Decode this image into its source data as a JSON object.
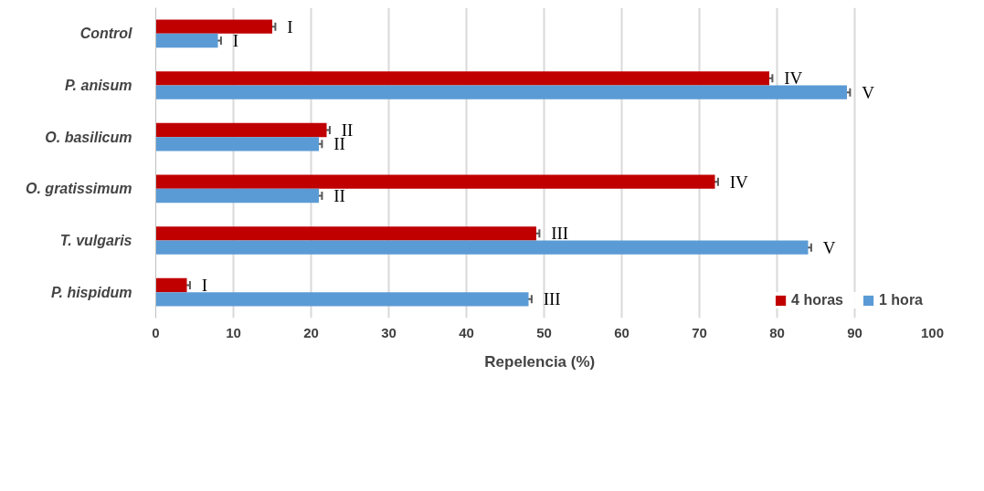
{
  "chart_data": {
    "type": "bar",
    "orientation": "horizontal",
    "xlabel": "Repelencia   (%)",
    "categories": [
      "Control",
      "P. anisum",
      "O. basilicum",
      "O. gratissimum",
      "T. vulgaris",
      "P. hispidum"
    ],
    "series": [
      {
        "name": "4 horas",
        "color": "#c00000",
        "values": [
          15,
          79,
          22,
          72,
          49,
          4
        ],
        "errors": [
          0.4,
          0.4,
          0.4,
          0.4,
          0.4,
          0.4
        ],
        "value_labels": [
          "I",
          "IV",
          "II",
          "IV",
          "III",
          "I"
        ]
      },
      {
        "name": "1 hora",
        "color": "#5b9bd5",
        "values": [
          8,
          89,
          21,
          21,
          84,
          48
        ],
        "errors": [
          0.4,
          0.4,
          0.4,
          0.4,
          0.4,
          0.4
        ],
        "value_labels": [
          "I",
          "V",
          "II",
          "II",
          "V",
          "III"
        ]
      }
    ],
    "xlim": [
      0,
      100
    ],
    "xticks": [
      0,
      10,
      20,
      30,
      40,
      50,
      60,
      70,
      80,
      90,
      100
    ],
    "grid": "x",
    "legend": "bottom right"
  }
}
